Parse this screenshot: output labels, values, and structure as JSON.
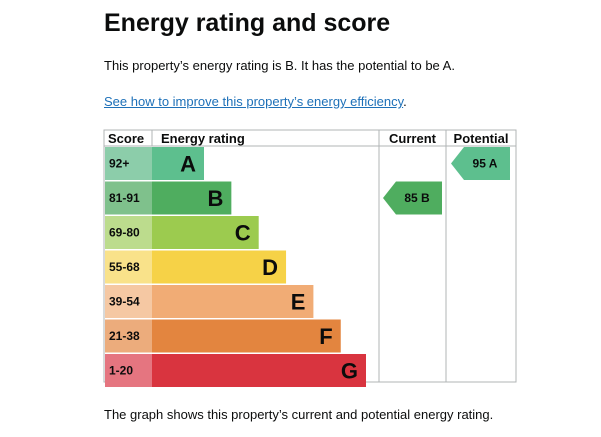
{
  "page": {
    "title": "Energy rating and score",
    "summary": "This property’s energy rating is B. It has the potential to be A.",
    "improve_link": "See how to improve this property’s energy efficiency",
    "improve_suffix": ".",
    "footer": "The graph shows this property’s current and potential energy rating."
  },
  "chart_data": {
    "type": "bar",
    "title": "Energy rating and score",
    "headers": {
      "score": "Score",
      "rating": "Energy rating",
      "current": "Current",
      "potential": "Potential"
    },
    "bands": [
      {
        "score": "92+",
        "letter": "A",
        "color": "#5dbf8e",
        "score_color": "#8ccdaa",
        "bar_fraction": 0.23
      },
      {
        "score": "81-91",
        "letter": "B",
        "color": "#4fad5f",
        "score_color": "#7fc18c",
        "bar_fraction": 0.36
      },
      {
        "score": "69-80",
        "letter": "C",
        "color": "#9ccb4f",
        "score_color": "#bcdc8d",
        "bar_fraction": 0.49
      },
      {
        "score": "55-68",
        "letter": "D",
        "color": "#f6d247",
        "score_color": "#f9e28a",
        "bar_fraction": 0.62
      },
      {
        "score": "39-54",
        "letter": "E",
        "color": "#f1ac75",
        "score_color": "#f5c8a3",
        "bar_fraction": 0.75
      },
      {
        "score": "21-38",
        "letter": "F",
        "color": "#e3853f",
        "score_color": "#ecac7c",
        "bar_fraction": 0.88
      },
      {
        "score": "1-20",
        "letter": "G",
        "color": "#d9343f",
        "score_color": "#e57580",
        "bar_fraction": 1.0
      }
    ],
    "current": {
      "score": 85,
      "letter": "B",
      "label": "85 B",
      "band_index": 1,
      "color": "#4fad5f"
    },
    "potential": {
      "score": 95,
      "letter": "A",
      "label": "95 A",
      "band_index": 0,
      "color": "#5dbf8e"
    }
  }
}
